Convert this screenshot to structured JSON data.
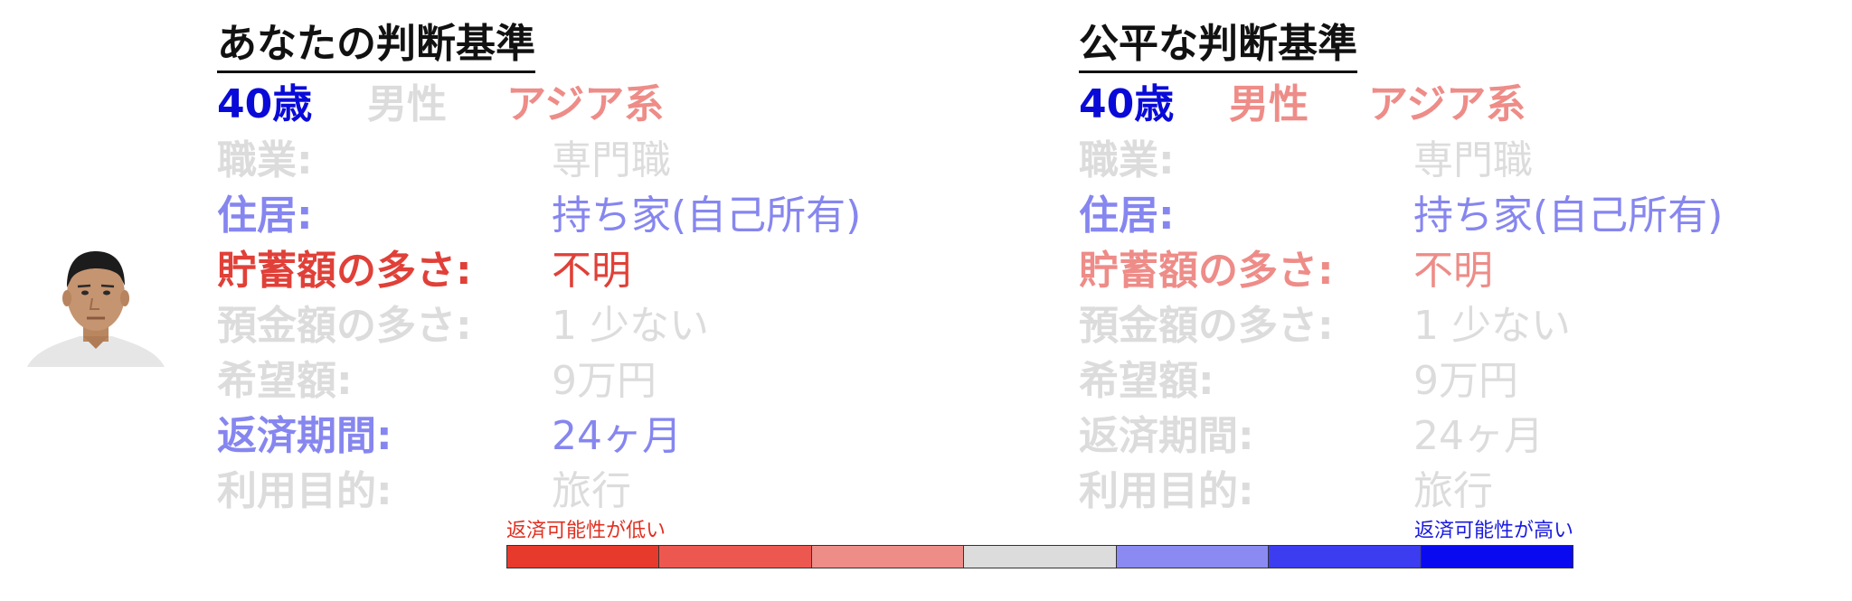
{
  "photo": {
    "icon": "person-portrait-icon"
  },
  "colors": {
    "strong_blue": "#0a0ad8",
    "light_blue": "#8686f0",
    "strong_red": "#e04038",
    "light_red": "#ee8c88",
    "gray": "#dcdcdc",
    "dark": "#111111"
  },
  "left_panel": {
    "title": "あなたの判断基準",
    "age": "40歳",
    "gender": "男性",
    "ethnicity": "アジア系",
    "rows": [
      {
        "label": "職業:",
        "value": "専門職"
      },
      {
        "label": "住居:",
        "value": "持ち家(自己所有)"
      },
      {
        "label": "貯蓄額の多さ:",
        "value": "不明"
      },
      {
        "label": "預金額の多さ:",
        "value": "1 少ない"
      },
      {
        "label": "希望額:",
        "value": "9万円"
      },
      {
        "label": "返済期間:",
        "value": "24ヶ月"
      },
      {
        "label": "利用目的:",
        "value": "旅行"
      }
    ]
  },
  "right_panel": {
    "title": "公平な判断基準",
    "age": "40歳",
    "gender": "男性",
    "ethnicity": "アジア系",
    "rows": [
      {
        "label": "職業:",
        "value": "専門職"
      },
      {
        "label": "住居:",
        "value": "持ち家(自己所有)"
      },
      {
        "label": "貯蓄額の多さ:",
        "value": "不明"
      },
      {
        "label": "預金額の多さ:",
        "value": "1 少ない"
      },
      {
        "label": "希望額:",
        "value": "9万円"
      },
      {
        "label": "返済期間:",
        "value": "24ヶ月"
      },
      {
        "label": "利用目的:",
        "value": "旅行"
      }
    ]
  },
  "legend": {
    "low_label": "返済可能性が低い",
    "high_label": "返済可能性が高い",
    "segments": [
      "#e83a2c",
      "#ec5850",
      "#ee8c88",
      "#dcdcdc",
      "#8a8af2",
      "#3c3cf0",
      "#0a0af0"
    ]
  }
}
